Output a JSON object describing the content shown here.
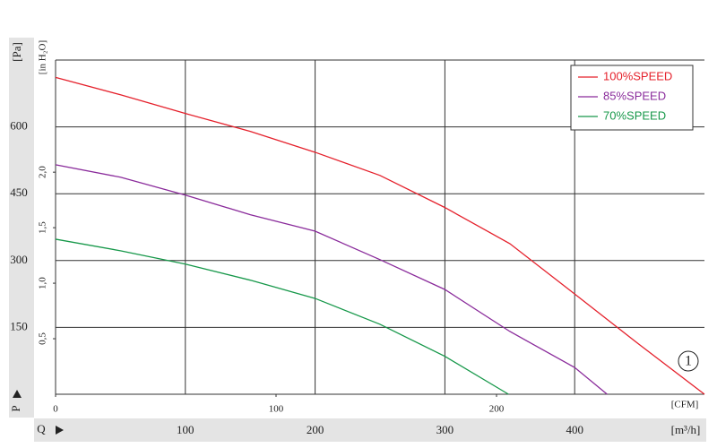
{
  "chart_data": {
    "type": "line",
    "ylabel": "[Pa]",
    "y_letter": "P",
    "y2label": "[in H₂O]",
    "xlabel": "[m³/h]",
    "x_letter": "Q",
    "x2label": "[CFM]",
    "xlim": [
      0,
      500
    ],
    "xticks": [
      100,
      200,
      300,
      400
    ],
    "ylim": [
      0,
      750
    ],
    "yticks": [
      150,
      300,
      450,
      600
    ],
    "y2lim": [
      0,
      3.01
    ],
    "y2ticks": [
      {
        "value": 0.5,
        "label": "0,5"
      },
      {
        "value": 1,
        "label": "1,0"
      },
      {
        "value": 1.5,
        "label": "1,5"
      },
      {
        "value": 2,
        "label": "2,0"
      }
    ],
    "x2lim": [
      0,
      294.3
    ],
    "x2ticks": [
      0,
      100,
      200
    ],
    "grid": true,
    "legend": "upper right",
    "annotation": "1",
    "series": [
      {
        "name": "100%SPEED",
        "color": "#e5202b",
        "x": [
          0,
          50,
          100,
          150,
          200,
          250,
          300,
          350,
          400,
          450,
          500
        ],
        "values": [
          711,
          672,
          630,
          590,
          543,
          491,
          419,
          338,
          225,
          111,
          0
        ]
      },
      {
        "name": "85%SPEED",
        "color": "#8a2b9b",
        "x": [
          0,
          50,
          100,
          150,
          200,
          250,
          300,
          350,
          400,
          425
        ],
        "values": [
          515,
          487,
          447,
          403,
          366,
          302,
          235,
          141,
          60,
          0
        ]
      },
      {
        "name": "70%SPEED",
        "color": "#17984a",
        "x": [
          0,
          50,
          100,
          150,
          200,
          250,
          300,
          349
        ],
        "values": [
          348,
          322,
          292,
          256,
          215,
          157,
          85,
          0
        ]
      }
    ]
  }
}
